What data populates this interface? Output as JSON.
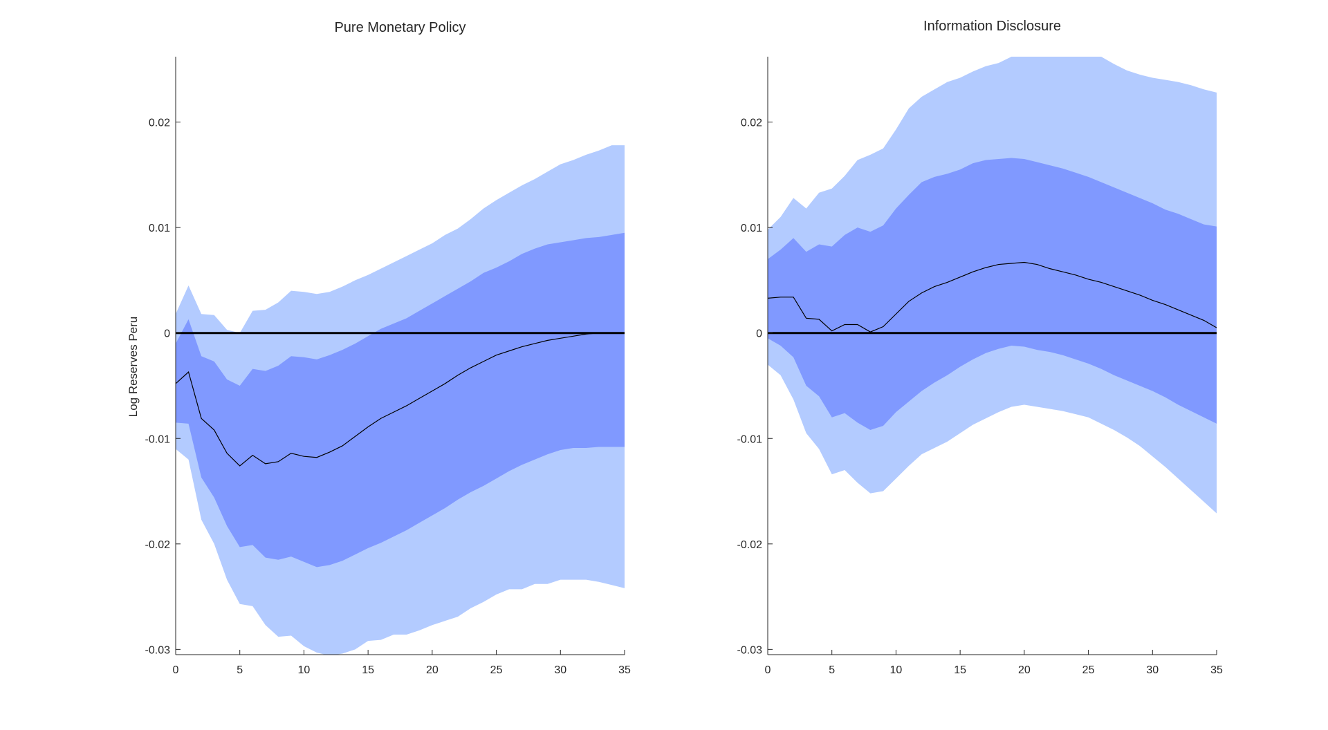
{
  "chart_data": [
    {
      "type": "area",
      "title": "Pure Monetary Policy",
      "xlabel": "",
      "ylabel": "Log Reserves Peru",
      "xlim": [
        0,
        35
      ],
      "ylim": [
        -0.0305,
        0.0262
      ],
      "xticks": [
        0,
        5,
        10,
        15,
        20,
        25,
        30,
        35
      ],
      "xtick_labels": [
        "0",
        "5",
        "10",
        "15",
        "20",
        "25",
        "30",
        "35"
      ],
      "yticks": [
        -0.03,
        -0.02,
        -0.01,
        0,
        0.01,
        0.02
      ],
      "ytick_labels": [
        "-0.03",
        "-0.02",
        "-0.01",
        "0",
        "0.01",
        "0.02"
      ],
      "x": [
        0,
        1,
        2,
        3,
        4,
        5,
        6,
        7,
        8,
        9,
        10,
        11,
        12,
        13,
        14,
        15,
        16,
        17,
        18,
        19,
        20,
        21,
        22,
        23,
        24,
        25,
        26,
        27,
        28,
        29,
        30,
        31,
        32,
        33,
        34,
        35
      ],
      "series": [
        {
          "name": "outer_upper",
          "values": [
            0.0018,
            0.0045,
            0.0018,
            0.0017,
            0.0003,
            0.0,
            0.0021,
            0.0022,
            0.0029,
            0.004,
            0.0039,
            0.0037,
            0.0039,
            0.0044,
            0.005,
            0.0055,
            0.0061,
            0.0067,
            0.0073,
            0.0079,
            0.0085,
            0.0093,
            0.0099,
            0.0108,
            0.0118,
            0.0126,
            0.0133,
            0.014,
            0.0146,
            0.0153,
            0.016,
            0.0164,
            0.0169,
            0.0173,
            0.0178,
            0.0178
          ]
        },
        {
          "name": "inner_upper",
          "values": [
            -0.001,
            0.0013,
            -0.0022,
            -0.0027,
            -0.0044,
            -0.005,
            -0.0034,
            -0.0036,
            -0.0031,
            -0.0022,
            -0.0023,
            -0.0025,
            -0.0021,
            -0.0016,
            -0.001,
            -0.0003,
            0.0004,
            0.0009,
            0.0014,
            0.0021,
            0.0028,
            0.0035,
            0.0042,
            0.0049,
            0.0057,
            0.0062,
            0.0068,
            0.0075,
            0.008,
            0.0084,
            0.0086,
            0.0088,
            0.009,
            0.0091,
            0.0093,
            0.0095
          ]
        },
        {
          "name": "median",
          "values": [
            -0.0048,
            -0.0037,
            -0.0081,
            -0.0092,
            -0.0114,
            -0.0126,
            -0.0116,
            -0.0124,
            -0.0122,
            -0.0114,
            -0.0117,
            -0.0118,
            -0.0113,
            -0.0107,
            -0.0098,
            -0.0089,
            -0.0081,
            -0.0075,
            -0.0069,
            -0.0062,
            -0.0055,
            -0.0048,
            -0.004,
            -0.0033,
            -0.0027,
            -0.0021,
            -0.0017,
            -0.0013,
            -0.001,
            -0.0007,
            -0.0005,
            -0.0003,
            -0.0001,
            0.0,
            0.0,
            0.0
          ]
        },
        {
          "name": "inner_lower",
          "values": [
            -0.0085,
            -0.0086,
            -0.0137,
            -0.0156,
            -0.0183,
            -0.0203,
            -0.0201,
            -0.0213,
            -0.0215,
            -0.0212,
            -0.0217,
            -0.0222,
            -0.022,
            -0.0216,
            -0.021,
            -0.0204,
            -0.0199,
            -0.0193,
            -0.0187,
            -0.018,
            -0.0173,
            -0.0166,
            -0.0158,
            -0.0151,
            -0.0145,
            -0.0138,
            -0.0131,
            -0.0125,
            -0.012,
            -0.0115,
            -0.0111,
            -0.0109,
            -0.0109,
            -0.0108,
            -0.0108,
            -0.0108
          ]
        },
        {
          "name": "outer_lower",
          "values": [
            -0.011,
            -0.012,
            -0.0177,
            -0.02,
            -0.0234,
            -0.0257,
            -0.0259,
            -0.0277,
            -0.0288,
            -0.0287,
            -0.0297,
            -0.0303,
            -0.0306,
            -0.0304,
            -0.03,
            -0.0292,
            -0.0291,
            -0.0286,
            -0.0286,
            -0.0282,
            -0.0277,
            -0.0273,
            -0.0269,
            -0.0261,
            -0.0255,
            -0.0248,
            -0.0243,
            -0.0243,
            -0.0238,
            -0.0238,
            -0.0234,
            -0.0234,
            -0.0234,
            -0.0236,
            -0.0239,
            -0.0242
          ]
        }
      ],
      "zero_line": 0
    },
    {
      "type": "area",
      "title": "Information Disclosure",
      "xlabel": "",
      "ylabel": "",
      "xlim": [
        0,
        35
      ],
      "ylim": [
        -0.0305,
        0.0262
      ],
      "xticks": [
        0,
        5,
        10,
        15,
        20,
        25,
        30,
        35
      ],
      "xtick_labels": [
        "0",
        "5",
        "10",
        "15",
        "20",
        "25",
        "30",
        "35"
      ],
      "yticks": [
        -0.03,
        -0.02,
        -0.01,
        0,
        0.01,
        0.02
      ],
      "ytick_labels": [
        "-0.03",
        "-0.02",
        "-0.01",
        "0",
        "0.01",
        "0.02"
      ],
      "x": [
        0,
        1,
        2,
        3,
        4,
        5,
        6,
        7,
        8,
        9,
        10,
        11,
        12,
        13,
        14,
        15,
        16,
        17,
        18,
        19,
        20,
        21,
        22,
        23,
        24,
        25,
        26,
        27,
        28,
        29,
        30,
        31,
        32,
        33,
        34,
        35
      ],
      "series": [
        {
          "name": "outer_upper",
          "values": [
            0.0098,
            0.011,
            0.0128,
            0.0118,
            0.0133,
            0.0137,
            0.0149,
            0.0164,
            0.0169,
            0.0175,
            0.0193,
            0.0213,
            0.0224,
            0.0231,
            0.0238,
            0.0242,
            0.0248,
            0.0253,
            0.0256,
            0.0262,
            0.0262,
            0.0262,
            0.0262,
            0.0262,
            0.0262,
            0.0262,
            0.0262,
            0.0255,
            0.0249,
            0.0245,
            0.0242,
            0.024,
            0.0238,
            0.0235,
            0.0231,
            0.0228
          ]
        },
        {
          "name": "inner_upper",
          "values": [
            0.007,
            0.0079,
            0.009,
            0.0077,
            0.0084,
            0.0082,
            0.0093,
            0.01,
            0.0096,
            0.0102,
            0.0118,
            0.0131,
            0.0143,
            0.0148,
            0.0151,
            0.0155,
            0.0161,
            0.0164,
            0.0165,
            0.0166,
            0.0165,
            0.0162,
            0.0159,
            0.0156,
            0.0152,
            0.0148,
            0.0143,
            0.0138,
            0.0133,
            0.0128,
            0.0123,
            0.0117,
            0.0113,
            0.0108,
            0.0103,
            0.0101
          ]
        },
        {
          "name": "median",
          "values": [
            0.0033,
            0.0034,
            0.0034,
            0.0014,
            0.0013,
            0.0002,
            0.0008,
            0.0008,
            0.0001,
            0.0006,
            0.0018,
            0.003,
            0.0038,
            0.0044,
            0.0048,
            0.0053,
            0.0058,
            0.0062,
            0.0065,
            0.0066,
            0.0067,
            0.0065,
            0.0061,
            0.0058,
            0.0055,
            0.0051,
            0.0048,
            0.0044,
            0.004,
            0.0036,
            0.0031,
            0.0027,
            0.0022,
            0.0017,
            0.0012,
            0.0005
          ]
        },
        {
          "name": "inner_lower",
          "values": [
            -0.0005,
            -0.0012,
            -0.0023,
            -0.005,
            -0.006,
            -0.008,
            -0.0076,
            -0.0085,
            -0.0092,
            -0.0088,
            -0.0075,
            -0.0065,
            -0.0055,
            -0.0047,
            -0.004,
            -0.0032,
            -0.0025,
            -0.0019,
            -0.0015,
            -0.0012,
            -0.0013,
            -0.0016,
            -0.0018,
            -0.0021,
            -0.0025,
            -0.0029,
            -0.0034,
            -0.004,
            -0.0045,
            -0.005,
            -0.0055,
            -0.0061,
            -0.0068,
            -0.0074,
            -0.008,
            -0.0086
          ]
        },
        {
          "name": "outer_lower",
          "values": [
            -0.003,
            -0.004,
            -0.0063,
            -0.0095,
            -0.011,
            -0.0134,
            -0.013,
            -0.0142,
            -0.0152,
            -0.015,
            -0.0138,
            -0.0126,
            -0.0115,
            -0.0109,
            -0.0103,
            -0.0095,
            -0.0087,
            -0.0081,
            -0.0075,
            -0.007,
            -0.0068,
            -0.007,
            -0.0072,
            -0.0074,
            -0.0077,
            -0.008,
            -0.0086,
            -0.0092,
            -0.0099,
            -0.0107,
            -0.0117,
            -0.0127,
            -0.0138,
            -0.0149,
            -0.016,
            -0.0171
          ]
        }
      ],
      "zero_line": 0
    }
  ],
  "colors": {
    "outer_band": "#b3cbff",
    "inner_band": "#8099ff",
    "median_line": "#000000",
    "zero_line": "#000000",
    "axis": "#262626"
  }
}
